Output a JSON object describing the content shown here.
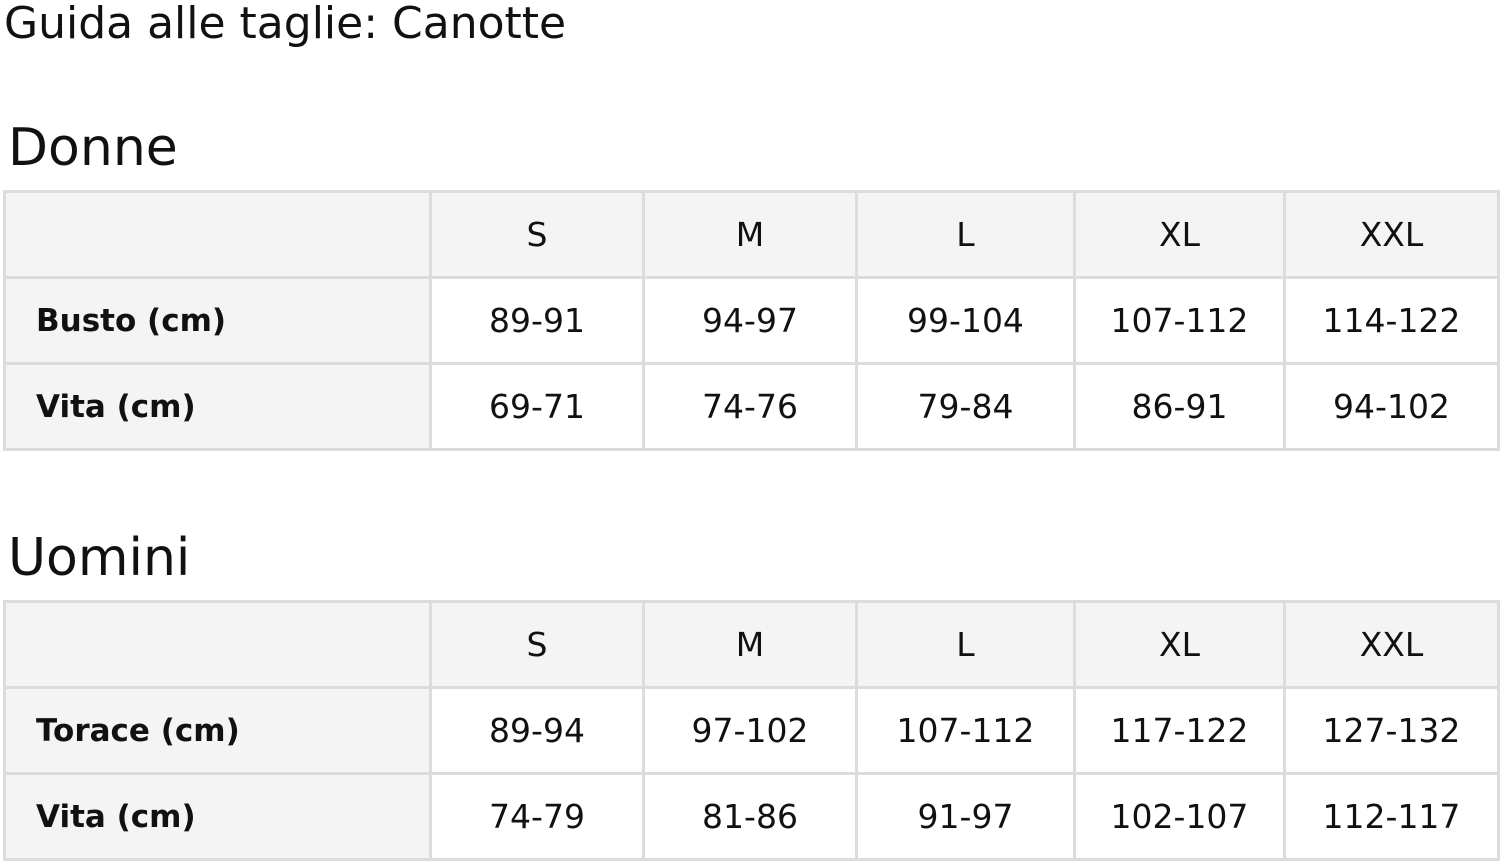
{
  "title": "Guida alle taglie: Canotte",
  "sizes": [
    "S",
    "M",
    "L",
    "XL",
    "XXL"
  ],
  "women": {
    "heading": "Donne",
    "rows": [
      {
        "label": "Busto (cm)",
        "values": [
          "89-91",
          "94-97",
          "99-104",
          "107-112",
          "114-122"
        ]
      },
      {
        "label": "Vita (cm)",
        "values": [
          "69-71",
          "74-76",
          "79-84",
          "86-91",
          "94-102"
        ]
      }
    ]
  },
  "men": {
    "heading": "Uomini",
    "rows": [
      {
        "label": "Torace (cm)",
        "values": [
          "89-94",
          "97-102",
          "107-112",
          "117-122",
          "127-132"
        ]
      },
      {
        "label": "Vita (cm)",
        "values": [
          "74-79",
          "81-86",
          "91-97",
          "102-107",
          "112-117"
        ]
      }
    ]
  }
}
